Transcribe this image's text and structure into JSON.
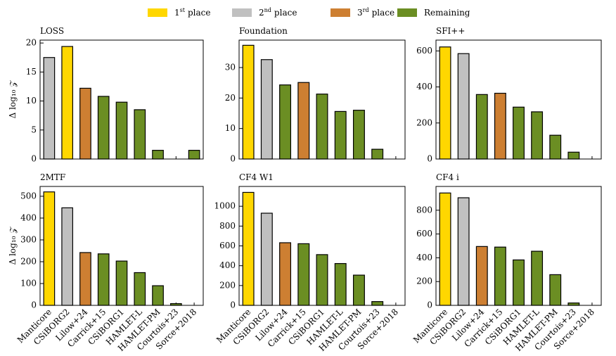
{
  "legend": [
    {
      "name": "1",
      "suffix": "st",
      "text": "place",
      "color": "#ffd700"
    },
    {
      "name": "2",
      "suffix": "nd",
      "text": "place",
      "color": "#c0c0c0"
    },
    {
      "name": "3",
      "suffix": "rd",
      "text": "place",
      "color": "#cd7f32"
    },
    {
      "name": "Remaining",
      "color": "#6b8e23"
    }
  ],
  "chart_data": [
    {
      "type": "bar",
      "title": "LOSS",
      "ylabel": "Δ log₁₀ 𝒵",
      "values": [
        17.5,
        19.4,
        12.2,
        10.8,
        9.8,
        8.5,
        1.5,
        null,
        1.5
      ],
      "colors": [
        "#c0c0c0",
        "#ffd700",
        "#cd7f32",
        "#6b8e23",
        "#6b8e23",
        "#6b8e23",
        "#6b8e23",
        "#6b8e23",
        "#6b8e23"
      ],
      "ylim": [
        0,
        20.5
      ],
      "yticks": [
        0,
        5,
        10,
        15,
        20
      ]
    },
    {
      "type": "bar",
      "title": "Foundation",
      "values": [
        37.3,
        32.6,
        24.3,
        25.1,
        21.3,
        15.6,
        16.0,
        3.2,
        null
      ],
      "colors": [
        "#ffd700",
        "#c0c0c0",
        "#6b8e23",
        "#cd7f32",
        "#6b8e23",
        "#6b8e23",
        "#6b8e23",
        "#6b8e23",
        "#6b8e23"
      ],
      "ylim": [
        0,
        39
      ],
      "yticks": [
        0,
        10,
        20,
        30
      ]
    },
    {
      "type": "bar",
      "title": "SFI++",
      "values": [
        622,
        585,
        358,
        365,
        288,
        262,
        132,
        38,
        null
      ],
      "colors": [
        "#ffd700",
        "#c0c0c0",
        "#6b8e23",
        "#cd7f32",
        "#6b8e23",
        "#6b8e23",
        "#6b8e23",
        "#6b8e23",
        "#6b8e23"
      ],
      "ylim": [
        0,
        660
      ],
      "yticks": [
        0,
        200,
        400,
        600
      ]
    },
    {
      "type": "bar",
      "title": "2MTF",
      "ylabel": "Δ log₁₀ 𝒵",
      "categories": [
        "Manticore",
        "CSiBORG2",
        "Lilow+24",
        "Carrick+15",
        "CSiBORG1",
        "HAMLET-L",
        "HAMLET-PM",
        "Courtois+23",
        "Sorce+2018"
      ],
      "values": [
        520,
        447,
        242,
        236,
        203,
        150,
        90,
        8,
        null
      ],
      "colors": [
        "#ffd700",
        "#c0c0c0",
        "#cd7f32",
        "#6b8e23",
        "#6b8e23",
        "#6b8e23",
        "#6b8e23",
        "#6b8e23",
        "#6b8e23"
      ],
      "ylim": [
        0,
        545
      ],
      "yticks": [
        0,
        100,
        200,
        300,
        400,
        500
      ]
    },
    {
      "type": "bar",
      "title": "CF4 W1",
      "categories": [
        "Manticore",
        "CSiBORG2",
        "Lilow+24",
        "Carrick+15",
        "CSiBORG1",
        "HAMLET-L",
        "HAMLET-PM",
        "Courtois+23",
        "Sorce+2018"
      ],
      "values": [
        1140,
        930,
        632,
        622,
        512,
        422,
        305,
        38,
        null
      ],
      "colors": [
        "#ffd700",
        "#c0c0c0",
        "#cd7f32",
        "#6b8e23",
        "#6b8e23",
        "#6b8e23",
        "#6b8e23",
        "#6b8e23",
        "#6b8e23"
      ],
      "ylim": [
        0,
        1200
      ],
      "yticks": [
        0,
        200,
        400,
        600,
        800,
        1000
      ]
    },
    {
      "type": "bar",
      "title": "CF4 i",
      "categories": [
        "Manticore",
        "CSiBORG2",
        "Lilow+24",
        "Carrick+15",
        "CSiBORG1",
        "HAMLET-L",
        "HAMLET-PM",
        "Courtois+23",
        "Sorce+2018"
      ],
      "values": [
        945,
        905,
        495,
        490,
        382,
        455,
        258,
        20,
        null
      ],
      "colors": [
        "#ffd700",
        "#c0c0c0",
        "#cd7f32",
        "#6b8e23",
        "#6b8e23",
        "#6b8e23",
        "#6b8e23",
        "#6b8e23",
        "#6b8e23"
      ],
      "ylim": [
        0,
        1000
      ],
      "yticks": [
        0,
        200,
        400,
        600,
        800
      ]
    }
  ]
}
